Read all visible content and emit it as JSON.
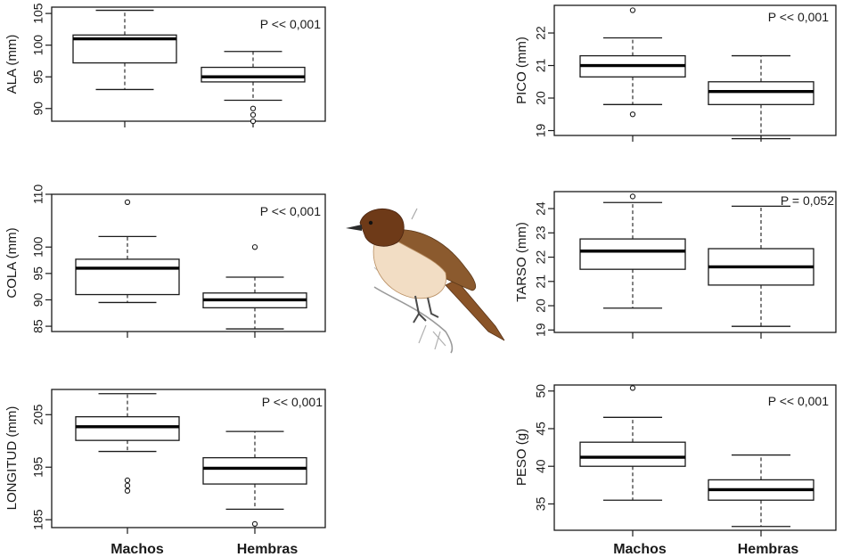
{
  "chart_data": [
    {
      "type": "boxplot",
      "ylabel": "ALA (mm)",
      "annotation": "P << 0,001",
      "yticks": [
        90,
        95,
        100,
        105
      ],
      "ylim": [
        88,
        106
      ],
      "categories": [
        "Machos",
        "Hembras"
      ],
      "boxes": [
        {
          "group": "Machos",
          "whisker_low": 93.0,
          "q1": 97.2,
          "median": 101.0,
          "q3": 101.6,
          "whisker_high": 105.5,
          "outliers": []
        },
        {
          "group": "Hembras",
          "whisker_low": 91.3,
          "q1": 94.2,
          "median": 95.0,
          "q3": 96.5,
          "whisker_high": 99.0,
          "outliers": [
            90.0,
            89.0,
            88.0
          ]
        }
      ]
    },
    {
      "type": "boxplot",
      "ylabel": "PICO (mm)",
      "annotation": "P << 0,001",
      "yticks": [
        19,
        20,
        21,
        22
      ],
      "ylim": [
        18.85,
        22.85
      ],
      "categories": [
        "Machos",
        "Hembras"
      ],
      "boxes": [
        {
          "group": "Machos",
          "whisker_low": 19.8,
          "q1": 20.65,
          "median": 21.0,
          "q3": 21.3,
          "whisker_high": 21.85,
          "outliers": [
            19.5,
            22.7
          ]
        },
        {
          "group": "Hembras",
          "whisker_low": 18.75,
          "q1": 19.8,
          "median": 20.2,
          "q3": 20.5,
          "whisker_high": 21.3,
          "outliers": []
        }
      ]
    },
    {
      "type": "boxplot",
      "ylabel": "COLA (mm)",
      "annotation": "P << 0,001",
      "yticks": [
        85,
        90,
        95,
        100,
        110
      ],
      "ylim": [
        84,
        110
      ],
      "categories": [
        "Machos",
        "Hembras"
      ],
      "boxes": [
        {
          "group": "Machos",
          "whisker_low": 89.5,
          "q1": 91.0,
          "median": 96.0,
          "q3": 97.7,
          "whisker_high": 102.0,
          "outliers": [
            108.5
          ]
        },
        {
          "group": "Hembras",
          "whisker_low": 84.5,
          "q1": 88.5,
          "median": 90.0,
          "q3": 91.3,
          "whisker_high": 94.3,
          "outliers": [
            100.0
          ]
        }
      ]
    },
    {
      "type": "boxplot",
      "ylabel": "TARSO (mm)",
      "annotation": "P = 0,052",
      "yticks": [
        19,
        20,
        21,
        22,
        23,
        24
      ],
      "ylim": [
        18.9,
        24.7
      ],
      "categories": [
        "Machos",
        "Hembras"
      ],
      "boxes": [
        {
          "group": "Machos",
          "whisker_low": 19.9,
          "q1": 21.5,
          "median": 22.25,
          "q3": 22.75,
          "whisker_high": 24.25,
          "outliers": [
            24.5
          ]
        },
        {
          "group": "Hembras",
          "whisker_low": 19.15,
          "q1": 20.85,
          "median": 21.6,
          "q3": 22.35,
          "whisker_high": 24.1,
          "outliers": []
        }
      ]
    },
    {
      "type": "boxplot",
      "ylabel": "LONGITUD (mm)",
      "annotation": "P << 0,001",
      "yticks": [
        185,
        195,
        205
      ],
      "ylim": [
        183.5,
        209.8
      ],
      "categories": [
        "Machos",
        "Hembras"
      ],
      "boxes": [
        {
          "group": "Machos",
          "whisker_low": 198.0,
          "q1": 200.1,
          "median": 202.7,
          "q3": 204.6,
          "whisker_high": 209.0,
          "outliers": [
            192.5,
            191.5,
            190.5
          ]
        },
        {
          "group": "Hembras",
          "whisker_low": 187.0,
          "q1": 191.8,
          "median": 194.8,
          "q3": 196.8,
          "whisker_high": 201.8,
          "outliers": [
            184.2
          ]
        }
      ]
    },
    {
      "type": "boxplot",
      "ylabel": "PESO (g)",
      "annotation": "P << 0,001",
      "yticks": [
        35,
        40,
        45,
        50
      ],
      "ylim": [
        31.5,
        50.8
      ],
      "categories": [
        "Machos",
        "Hembras"
      ],
      "boxes": [
        {
          "group": "Machos",
          "whisker_low": 35.5,
          "q1": 40.0,
          "median": 41.2,
          "q3": 43.2,
          "whisker_high": 46.5,
          "outliers": [
            50.4
          ]
        },
        {
          "group": "Hembras",
          "whisker_low": 32.0,
          "q1": 35.5,
          "median": 36.9,
          "q3": 38.2,
          "whisker_high": 41.5,
          "outliers": []
        }
      ]
    }
  ],
  "group_labels": [
    "Machos",
    "Hembras"
  ],
  "illustration": "bird-illustration"
}
